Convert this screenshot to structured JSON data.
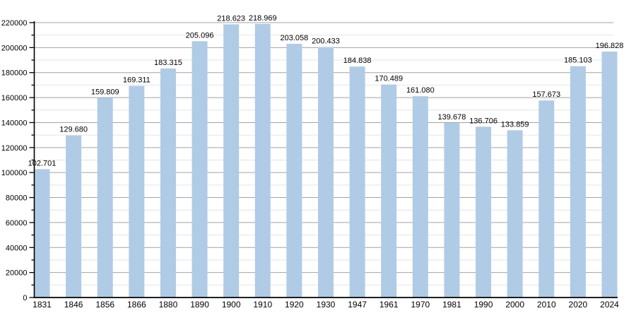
{
  "chart": {
    "background_color": "#ffffff"
  },
  "chart_data": {
    "type": "bar",
    "title": "",
    "xlabel": "",
    "ylabel": "",
    "categories": [
      "1831",
      "1846",
      "1856",
      "1866",
      "1880",
      "1890",
      "1900",
      "1910",
      "1920",
      "1930",
      "1947",
      "1961",
      "1970",
      "1981",
      "1990",
      "2000",
      "2010",
      "2020",
      "2024"
    ],
    "values": [
      102701,
      129680,
      159809,
      169311,
      183315,
      205096,
      218623,
      218969,
      203058,
      200433,
      184838,
      170489,
      161080,
      139678,
      136706,
      133859,
      157673,
      185103,
      196828
    ],
    "bar_labels": [
      "102.701",
      "129.680",
      "159.809",
      "169.311",
      "183.315",
      "205.096",
      "218.623",
      "218.969",
      "203.058",
      "200.433",
      "184.838",
      "170.489",
      "161.080",
      "139.678",
      "136.706",
      "133.859",
      "157.673",
      "185.103",
      "196.828"
    ],
    "ylim": [
      0,
      220000
    ],
    "y_major_step": 20000,
    "y_minor_step": 10000,
    "y_tick_labels": [
      "0",
      "20000",
      "40000",
      "60000",
      "80000",
      "100000",
      "120000",
      "140000",
      "160000",
      "180000",
      "200000",
      "220000"
    ],
    "grid": true,
    "legend": null,
    "colors": {
      "bar_fill": "#b0cbe5",
      "major_grid": "#a3a3a3",
      "minor_grid": "#e4e4e4",
      "axis": "#000000",
      "text": "#000000"
    }
  }
}
